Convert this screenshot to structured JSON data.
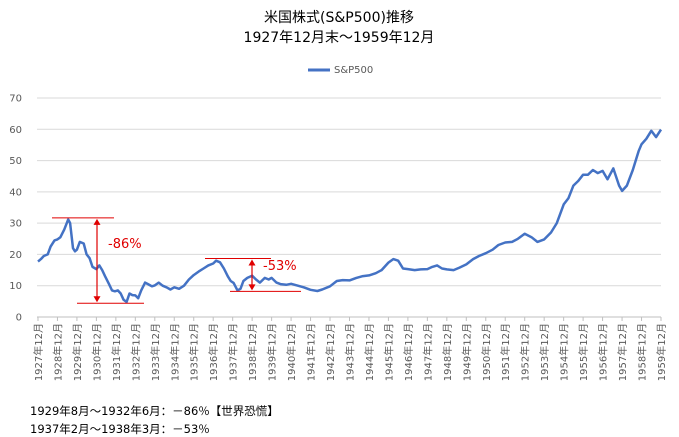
{
  "chart_data": {
    "type": "line",
    "title": "米国株式(S&P500)推移",
    "subtitle": "1927年12月末～1959年12月",
    "ylim": [
      0,
      70
    ],
    "y_ticks": [
      0,
      10,
      20,
      30,
      40,
      50,
      60,
      70
    ],
    "x_range": [
      1927.9,
      1959.95
    ],
    "x_tick_labels": [
      "1927年12月",
      "1928年12月",
      "1929年12月",
      "1930年12月",
      "1931年12月",
      "1932年12月",
      "1933年12月",
      "1934年12月",
      "1935年12月",
      "1936年12月",
      "1937年12月",
      "1938年12月",
      "1939年12月",
      "1940年12月",
      "1941年12月",
      "1942年12月",
      "1943年12月",
      "1944年12月",
      "1945年12月",
      "1946年12月",
      "1947年12月",
      "1948年12月",
      "1949年12月",
      "1950年12月",
      "1951年12月",
      "1952年12月",
      "1953年12月",
      "1954年12月",
      "1955年12月",
      "1956年12月",
      "1957年12月",
      "1958年12月",
      "1959年12月"
    ],
    "x_tick_values": [
      1927.95,
      1928.95,
      1929.95,
      1930.95,
      1931.95,
      1932.95,
      1933.95,
      1934.95,
      1935.95,
      1936.95,
      1937.95,
      1938.95,
      1939.95,
      1940.95,
      1941.95,
      1942.95,
      1943.95,
      1944.95,
      1945.95,
      1946.95,
      1947.95,
      1948.95,
      1949.95,
      1950.95,
      1951.95,
      1952.95,
      1953.95,
      1954.95,
      1955.95,
      1956.95,
      1957.95,
      1958.95,
      1959.95
    ],
    "legend_position": "top",
    "series": [
      {
        "name": "S&P500",
        "color": "#4472c4",
        "x": [
          1927.95,
          1928.1,
          1928.25,
          1928.45,
          1928.6,
          1928.8,
          1928.95,
          1929.1,
          1929.3,
          1929.5,
          1929.6,
          1929.75,
          1929.85,
          1929.95,
          1930.1,
          1930.3,
          1930.45,
          1930.6,
          1930.75,
          1930.95,
          1931.1,
          1931.25,
          1931.4,
          1931.6,
          1931.75,
          1931.9,
          1932.05,
          1932.2,
          1932.35,
          1932.5,
          1932.65,
          1932.8,
          1932.95,
          1933.1,
          1933.25,
          1933.45,
          1933.6,
          1933.8,
          1933.95,
          1934.15,
          1934.35,
          1934.55,
          1934.75,
          1934.95,
          1935.2,
          1935.45,
          1935.7,
          1935.95,
          1936.2,
          1936.45,
          1936.7,
          1936.95,
          1937.1,
          1937.3,
          1937.5,
          1937.7,
          1937.85,
          1938.0,
          1938.2,
          1938.35,
          1938.5,
          1938.7,
          1938.95,
          1939.15,
          1939.35,
          1939.6,
          1939.8,
          1939.95,
          1940.2,
          1940.4,
          1940.7,
          1940.95,
          1941.3,
          1941.6,
          1941.95,
          1942.3,
          1942.55,
          1942.95,
          1943.3,
          1943.6,
          1943.95,
          1944.3,
          1944.6,
          1944.95,
          1945.3,
          1945.6,
          1945.95,
          1946.2,
          1946.45,
          1946.7,
          1946.95,
          1947.3,
          1947.6,
          1947.95,
          1948.2,
          1948.45,
          1948.7,
          1948.95,
          1949.3,
          1949.6,
          1949.95,
          1950.3,
          1950.6,
          1950.95,
          1951.3,
          1951.6,
          1951.95,
          1952.3,
          1952.6,
          1952.95,
          1953.3,
          1953.6,
          1953.95,
          1954.3,
          1954.6,
          1954.95,
          1955.2,
          1955.45,
          1955.7,
          1955.95,
          1956.2,
          1956.45,
          1956.7,
          1956.95,
          1957.2,
          1957.5,
          1957.8,
          1957.95,
          1958.2,
          1958.5,
          1958.8,
          1958.95,
          1959.2,
          1959.45,
          1959.7,
          1959.95
        ],
        "y": [
          17.7,
          18.5,
          19.5,
          20.0,
          22.5,
          24.5,
          24.8,
          25.5,
          28.0,
          31.2,
          30.0,
          22.0,
          21.0,
          21.5,
          24.0,
          23.5,
          20.0,
          18.8,
          16.0,
          15.3,
          16.5,
          15.0,
          13.0,
          10.5,
          8.5,
          8.2,
          8.5,
          7.5,
          5.5,
          4.8,
          7.5,
          7.0,
          6.9,
          6.0,
          8.5,
          11.0,
          10.5,
          9.8,
          10.1,
          11.0,
          10.0,
          9.5,
          8.8,
          9.5,
          9.0,
          10.0,
          12.0,
          13.4,
          14.5,
          15.5,
          16.5,
          17.1,
          18.0,
          17.5,
          15.5,
          13.0,
          11.5,
          10.9,
          8.5,
          9.0,
          11.5,
          12.5,
          13.2,
          12.0,
          11.0,
          12.5,
          12.0,
          12.5,
          11.0,
          10.5,
          10.3,
          10.6,
          10.0,
          9.5,
          8.7,
          8.3,
          8.8,
          9.8,
          11.5,
          11.8,
          11.7,
          12.5,
          13.0,
          13.3,
          14.0,
          15.0,
          17.4,
          18.5,
          18.0,
          15.5,
          15.3,
          15.0,
          15.2,
          15.3,
          16.0,
          16.5,
          15.5,
          15.2,
          15.0,
          15.8,
          16.8,
          18.5,
          19.5,
          20.4,
          21.5,
          23.0,
          23.8,
          24.0,
          25.0,
          26.6,
          25.5,
          24.0,
          24.8,
          27.0,
          30.0,
          36.0,
          38.0,
          42.0,
          43.5,
          45.5,
          45.5,
          47.0,
          46.0,
          46.7,
          44.0,
          47.5,
          42.0,
          40.3,
          42.0,
          47.0,
          53.0,
          55.2,
          57.0,
          59.5,
          57.5,
          59.9
        ],
        "line_width": 2.5
      }
    ],
    "annotations": [
      {
        "label": "-86%",
        "from": 31.7,
        "to": 4.4
      },
      {
        "label": "-53%",
        "from": 18.7,
        "to": 8.2
      }
    ]
  },
  "notes": [
    "1929年8月～1932年6月：－86％【世界恐慌】",
    "1937年2月～1938年3月：－53％"
  ]
}
